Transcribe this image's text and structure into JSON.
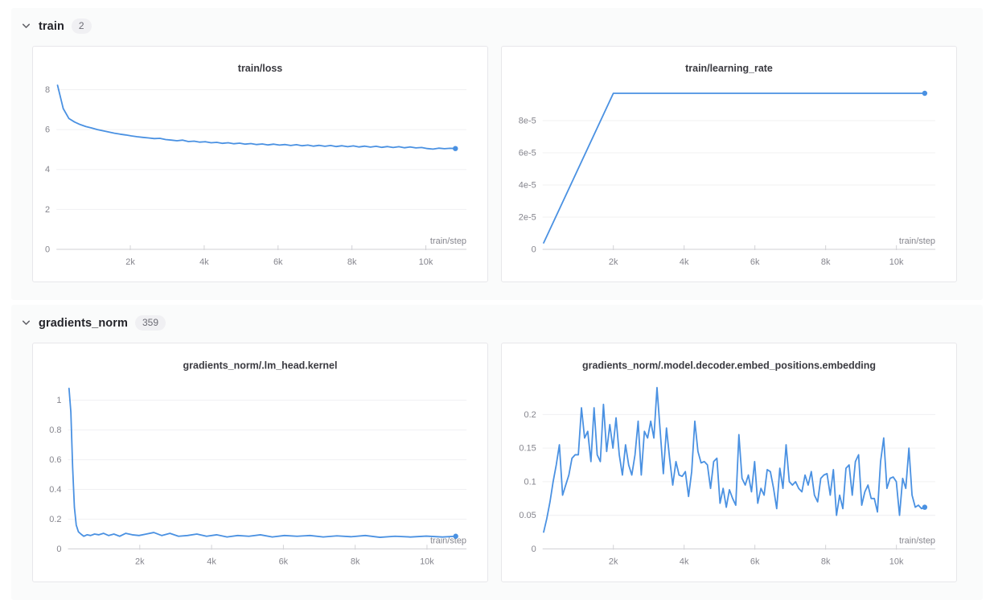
{
  "colors": {
    "page_bg": "#ffffff",
    "section_bg": "#fafbfb",
    "card_bg": "#ffffff",
    "card_border": "#e7e7ea",
    "accent": "#4a91e2",
    "grid": "#f0f0f2",
    "axis": "#d2d2d6",
    "tick_text": "#85858d",
    "title_text": "#3a3a40"
  },
  "sections": [
    {
      "label": "train",
      "count": "2"
    },
    {
      "label": "gradients_norm",
      "count": "359"
    }
  ],
  "chart_data": [
    {
      "type": "line",
      "title": "train/loss",
      "xlabel": "train/step",
      "legend_position": "none",
      "grid": "horizontal",
      "xlim": [
        0,
        11100
      ],
      "ylim": [
        0,
        8.3
      ],
      "x_ticks": [
        2000,
        4000,
        6000,
        8000,
        10000
      ],
      "x_tick_labels": [
        "2k",
        "4k",
        "6k",
        "8k",
        "10k"
      ],
      "y_ticks": [
        0,
        2,
        4,
        6,
        8
      ],
      "y_tick_labels": [
        "0",
        "2",
        "4",
        "6",
        "8"
      ],
      "end_marker": true,
      "x": [
        30,
        184,
        338,
        492,
        646,
        800,
        954,
        1108,
        1262,
        1416,
        1570,
        1724,
        1878,
        2032,
        2186,
        2340,
        2494,
        2648,
        2802,
        2956,
        3110,
        3264,
        3418,
        3572,
        3726,
        3880,
        4034,
        4188,
        4342,
        4496,
        4650,
        4804,
        4958,
        5112,
        5266,
        5420,
        5574,
        5728,
        5882,
        6036,
        6190,
        6344,
        6498,
        6652,
        6806,
        6960,
        7114,
        7268,
        7422,
        7576,
        7730,
        7884,
        8038,
        8192,
        8346,
        8500,
        8654,
        8808,
        8962,
        9116,
        9270,
        9424,
        9578,
        9732,
        9886,
        10040,
        10194,
        10348,
        10502,
        10656,
        10800
      ],
      "y": [
        8.22,
        7.05,
        6.55,
        6.38,
        6.25,
        6.15,
        6.08,
        6.0,
        5.94,
        5.88,
        5.82,
        5.77,
        5.73,
        5.68,
        5.64,
        5.61,
        5.58,
        5.55,
        5.56,
        5.5,
        5.47,
        5.44,
        5.47,
        5.4,
        5.42,
        5.37,
        5.39,
        5.34,
        5.36,
        5.31,
        5.34,
        5.29,
        5.32,
        5.27,
        5.3,
        5.25,
        5.28,
        5.23,
        5.27,
        5.22,
        5.25,
        5.2,
        5.24,
        5.19,
        5.22,
        5.17,
        5.21,
        5.16,
        5.2,
        5.15,
        5.19,
        5.14,
        5.18,
        5.13,
        5.17,
        5.12,
        5.16,
        5.11,
        5.15,
        5.1,
        5.14,
        5.09,
        5.13,
        5.08,
        5.1,
        5.05,
        5.02,
        5.07,
        5.04,
        5.06,
        5.05
      ]
    },
    {
      "type": "line",
      "title": "train/learning_rate",
      "xlabel": "train/step",
      "legend_position": "none",
      "grid": "horizontal",
      "xlim": [
        0,
        11100
      ],
      "ylim": [
        0,
        0.000103
      ],
      "x_ticks": [
        2000,
        4000,
        6000,
        8000,
        10000
      ],
      "x_tick_labels": [
        "2k",
        "4k",
        "6k",
        "8k",
        "10k"
      ],
      "y_ticks": [
        0,
        2e-05,
        4e-05,
        6e-05,
        8e-05
      ],
      "y_tick_labels": [
        "0",
        "2e-5",
        "4e-5",
        "6e-5",
        "8e-5"
      ],
      "end_marker": true,
      "x": [
        30,
        2000,
        10800
      ],
      "y": [
        4e-06,
        9.7e-05,
        9.7e-05
      ]
    },
    {
      "type": "line",
      "title": "gradients_norm/.lm_head.kernel",
      "xlabel": "train/step",
      "legend_position": "none",
      "grid": "horizontal",
      "xlim": [
        0,
        11100
      ],
      "ylim": [
        0,
        1.13
      ],
      "x_ticks": [
        2000,
        4000,
        6000,
        8000,
        10000
      ],
      "x_tick_labels": [
        "2k",
        "4k",
        "6k",
        "8k",
        "10k"
      ],
      "y_ticks": [
        0,
        0.2,
        0.4,
        0.6,
        0.8,
        1
      ],
      "y_tick_labels": [
        "0",
        "0.2",
        "0.4",
        "0.6",
        "0.8",
        "1"
      ],
      "end_marker": true,
      "x": [
        30,
        80,
        130,
        180,
        230,
        290,
        360,
        440,
        530,
        630,
        740,
        860,
        990,
        1130,
        1280,
        1440,
        1610,
        1790,
        1980,
        2180,
        2390,
        2610,
        2840,
        3080,
        3330,
        3590,
        3860,
        4140,
        4430,
        4730,
        5040,
        5360,
        5690,
        6030,
        6380,
        6740,
        7110,
        7490,
        7880,
        8280,
        8690,
        9110,
        9540,
        9980,
        10430,
        10800
      ],
      "y": [
        1.08,
        0.92,
        0.55,
        0.28,
        0.16,
        0.115,
        0.1,
        0.085,
        0.095,
        0.09,
        0.1,
        0.095,
        0.105,
        0.09,
        0.1,
        0.085,
        0.105,
        0.095,
        0.09,
        0.1,
        0.11,
        0.09,
        0.105,
        0.085,
        0.09,
        0.1,
        0.085,
        0.095,
        0.08,
        0.09,
        0.085,
        0.095,
        0.08,
        0.09,
        0.085,
        0.09,
        0.08,
        0.088,
        0.082,
        0.09,
        0.078,
        0.085,
        0.08,
        0.086,
        0.08,
        0.085
      ]
    },
    {
      "type": "line",
      "title": "gradients_norm/.model.decoder.embed_positions.embedding",
      "xlabel": "train/step",
      "legend_position": "none",
      "grid": "horizontal",
      "xlim": [
        0,
        11100
      ],
      "ylim": [
        0,
        0.25
      ],
      "x_ticks": [
        2000,
        4000,
        6000,
        8000,
        10000
      ],
      "x_tick_labels": [
        "2k",
        "4k",
        "6k",
        "8k",
        "10k"
      ],
      "y_ticks": [
        0,
        0.05,
        0.1,
        0.15,
        0.2
      ],
      "y_tick_labels": [
        "0",
        "0.05",
        "0.1",
        "0.15",
        "0.2"
      ],
      "end_marker": true,
      "x": [
        30,
        119,
        208,
        297,
        386,
        475,
        564,
        653,
        742,
        831,
        920,
        1009,
        1098,
        1187,
        1276,
        1365,
        1454,
        1543,
        1632,
        1721,
        1810,
        1899,
        1988,
        2077,
        2166,
        2255,
        2344,
        2433,
        2522,
        2611,
        2700,
        2789,
        2878,
        2967,
        3056,
        3145,
        3234,
        3323,
        3412,
        3501,
        3590,
        3679,
        3768,
        3857,
        3946,
        4035,
        4124,
        4213,
        4302,
        4391,
        4480,
        4569,
        4658,
        4747,
        4836,
        4925,
        5014,
        5103,
        5192,
        5281,
        5370,
        5459,
        5548,
        5637,
        5726,
        5815,
        5904,
        5993,
        6082,
        6171,
        6260,
        6349,
        6438,
        6527,
        6616,
        6705,
        6794,
        6883,
        6972,
        7061,
        7150,
        7239,
        7328,
        7417,
        7506,
        7595,
        7684,
        7773,
        7862,
        7951,
        8040,
        8129,
        8218,
        8307,
        8396,
        8485,
        8574,
        8663,
        8752,
        8841,
        8930,
        9019,
        9108,
        9197,
        9286,
        9375,
        9464,
        9553,
        9642,
        9731,
        9820,
        9909,
        9998,
        10087,
        10176,
        10265,
        10354,
        10443,
        10532,
        10621,
        10710,
        10800
      ],
      "y": [
        0.025,
        0.045,
        0.07,
        0.1,
        0.125,
        0.155,
        0.08,
        0.095,
        0.11,
        0.135,
        0.14,
        0.14,
        0.21,
        0.165,
        0.175,
        0.13,
        0.21,
        0.14,
        0.13,
        0.215,
        0.145,
        0.185,
        0.15,
        0.195,
        0.14,
        0.11,
        0.155,
        0.125,
        0.11,
        0.14,
        0.19,
        0.11,
        0.175,
        0.165,
        0.19,
        0.165,
        0.24,
        0.175,
        0.112,
        0.18,
        0.135,
        0.095,
        0.13,
        0.11,
        0.108,
        0.115,
        0.078,
        0.115,
        0.19,
        0.145,
        0.128,
        0.13,
        0.125,
        0.09,
        0.13,
        0.135,
        0.068,
        0.09,
        0.062,
        0.088,
        0.075,
        0.065,
        0.17,
        0.105,
        0.095,
        0.11,
        0.085,
        0.13,
        0.068,
        0.09,
        0.08,
        0.118,
        0.115,
        0.09,
        0.06,
        0.12,
        0.09,
        0.155,
        0.1,
        0.095,
        0.1,
        0.09,
        0.085,
        0.11,
        0.095,
        0.115,
        0.08,
        0.07,
        0.105,
        0.11,
        0.112,
        0.08,
        0.118,
        0.05,
        0.08,
        0.06,
        0.12,
        0.125,
        0.08,
        0.13,
        0.14,
        0.065,
        0.085,
        0.095,
        0.075,
        0.075,
        0.055,
        0.13,
        0.165,
        0.09,
        0.105,
        0.107,
        0.1,
        0.05,
        0.105,
        0.09,
        0.15,
        0.08,
        0.062,
        0.065,
        0.06,
        0.062
      ]
    }
  ]
}
